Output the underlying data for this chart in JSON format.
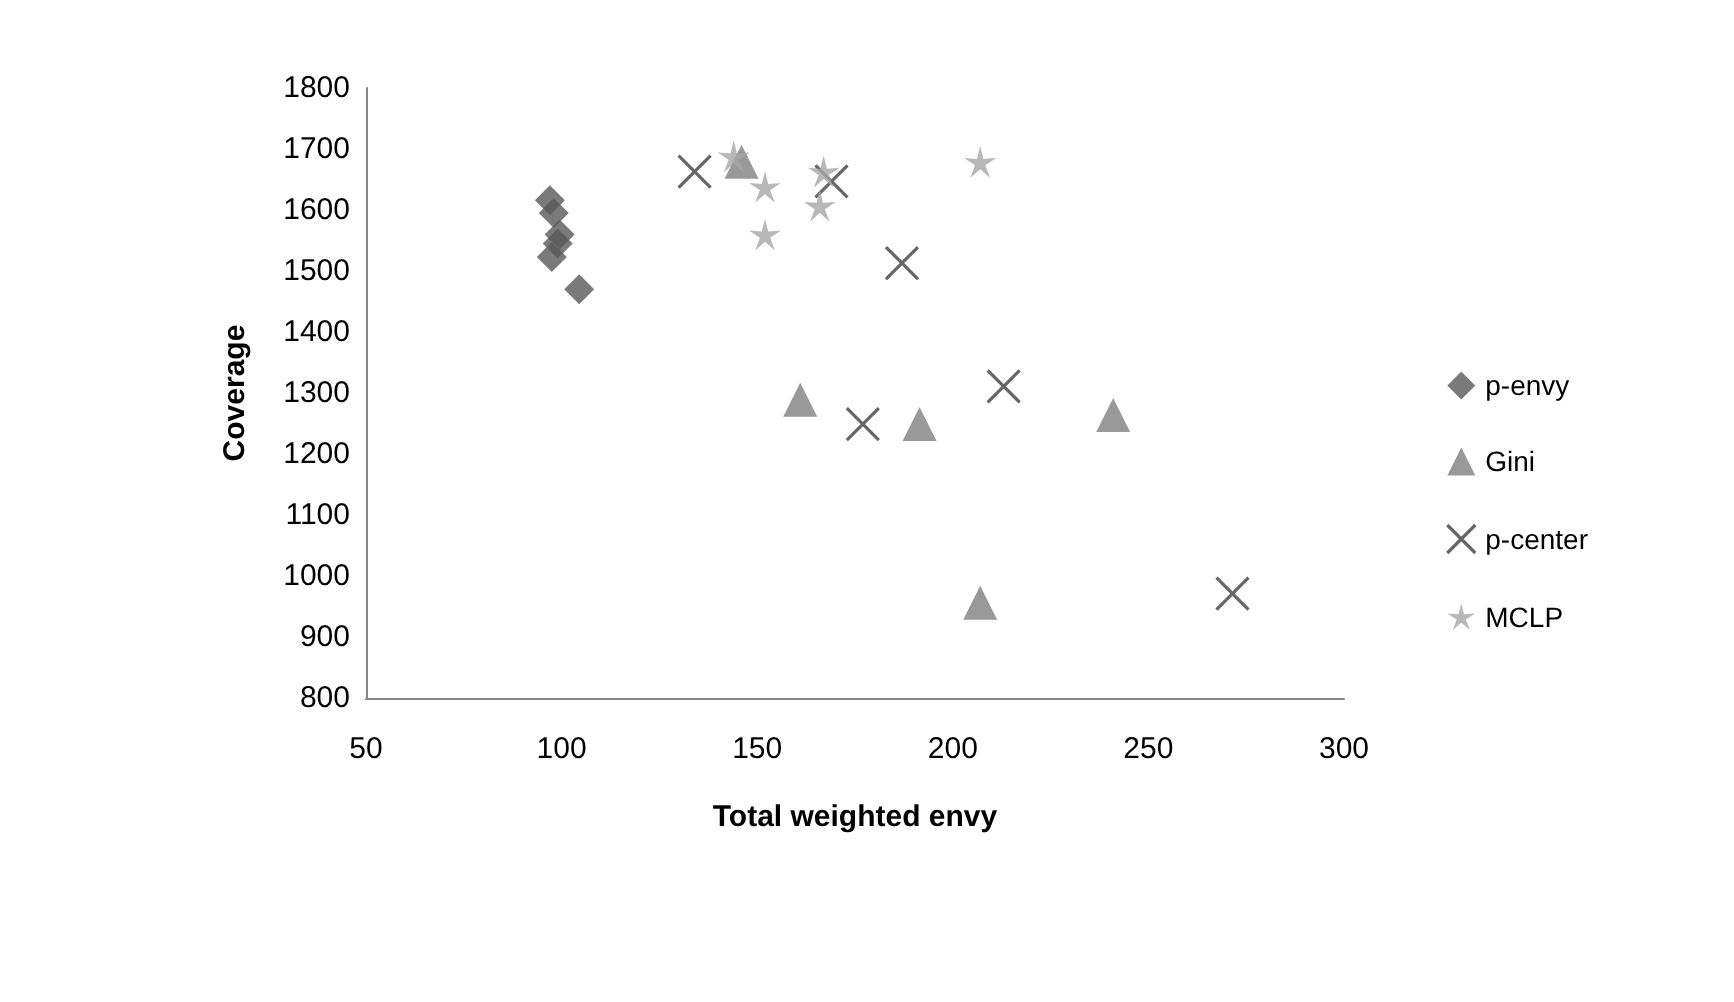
{
  "chart_data": {
    "type": "scatter",
    "xlabel": "Total weighted envy",
    "ylabel": "Coverage",
    "xlim": [
      50,
      300
    ],
    "xticks": [
      50,
      100,
      150,
      200,
      250,
      300
    ],
    "ylim": [
      800,
      1800
    ],
    "yticks": [
      800,
      900,
      1000,
      1100,
      1200,
      1300,
      1400,
      1500,
      1600,
      1700,
      1800
    ],
    "grid": false,
    "legend": "right",
    "series": [
      {
        "name": "p-envy",
        "color": "#595959",
        "marker": "diamond",
        "x": [
          97,
          98,
          99.5,
          99,
          97.5,
          104.5
        ],
        "values": [
          1616,
          1595,
          1560,
          1545,
          1523,
          1470
        ]
      },
      {
        "name": "Gini",
        "color": "#808080",
        "marker": "triangle",
        "x": [
          146,
          161,
          191.5,
          241,
          207
        ],
        "values": [
          1679,
          1289,
          1249,
          1264,
          956
        ]
      },
      {
        "name": "p-center",
        "color": "#404040",
        "marker": "cross",
        "x": [
          134,
          169,
          187,
          177,
          213,
          271.5
        ],
        "values": [
          1663,
          1647,
          1513,
          1249,
          1311,
          971
        ]
      },
      {
        "name": "MCLP",
        "color": "#a6a6a6",
        "marker": "star",
        "x": [
          144,
          152,
          152,
          167,
          166,
          207
        ],
        "values": [
          1688,
          1638,
          1560,
          1663,
          1607,
          1679
        ]
      }
    ]
  }
}
